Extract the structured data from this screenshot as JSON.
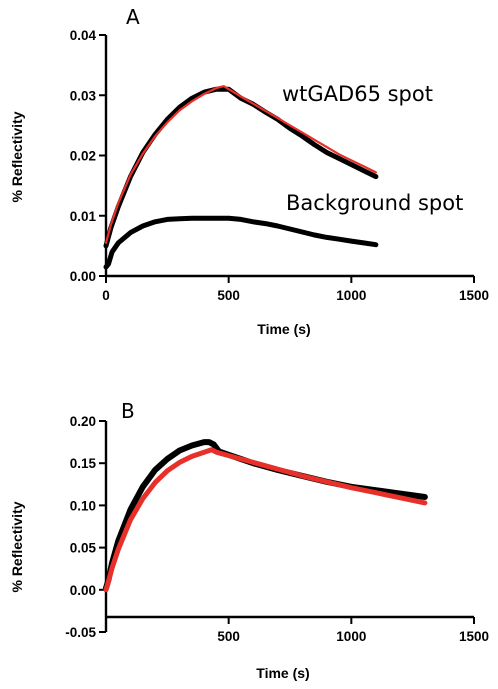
{
  "chart_data": [
    {
      "type": "line",
      "panel_label": "A",
      "xlabel": "Time (s)",
      "ylabel": "% Reflectivity",
      "xlim": [
        0,
        1500
      ],
      "ylim": [
        0,
        0.04
      ],
      "xticks": [
        0,
        500,
        1000,
        1500
      ],
      "xtick_labels": [
        "0",
        "500",
        "1000",
        "1500"
      ],
      "yticks": [
        0,
        0.01,
        0.02,
        0.03,
        0.04
      ],
      "ytick_labels": [
        "0.00",
        "0.01",
        "0.02",
        "0.03",
        "0.04"
      ],
      "grid": false,
      "annotations": [
        "wtGAD65 spot",
        "Background spot"
      ],
      "series": [
        {
          "role": "data",
          "color": "#000000",
          "x": [
            0,
            20,
            50,
            100,
            150,
            200,
            250,
            300,
            350,
            400,
            450,
            500,
            550,
            600,
            650,
            700,
            750,
            800,
            850,
            900,
            950,
            1000,
            1050,
            1100
          ],
          "y": [
            0.005,
            0.008,
            0.0115,
            0.0165,
            0.0205,
            0.0235,
            0.026,
            0.028,
            0.0295,
            0.0305,
            0.031,
            0.031,
            0.0295,
            0.0285,
            0.0272,
            0.026,
            0.0245,
            0.0232,
            0.0218,
            0.0205,
            0.0195,
            0.0185,
            0.0175,
            0.0165
          ]
        },
        {
          "role": "fit",
          "color": "#e8302b",
          "x": [
            0,
            20,
            50,
            100,
            150,
            200,
            250,
            300,
            350,
            400,
            450,
            480,
            550,
            600,
            650,
            700,
            750,
            800,
            850,
            900,
            950,
            1000,
            1050,
            1100
          ],
          "y": [
            0.0055,
            0.0085,
            0.0121,
            0.0168,
            0.0203,
            0.0232,
            0.0255,
            0.0275,
            0.029,
            0.0302,
            0.0312,
            0.0315,
            0.0298,
            0.0286,
            0.0274,
            0.0262,
            0.025,
            0.0238,
            0.0226,
            0.0214,
            0.0202,
            0.0192,
            0.0182,
            0.0172
          ]
        },
        {
          "role": "data",
          "color": "#000000",
          "x": [
            0,
            10,
            25,
            50,
            100,
            150,
            200,
            250,
            300,
            350,
            400,
            450,
            500,
            550,
            600,
            650,
            700,
            750,
            800,
            850,
            900,
            950,
            1000,
            1050,
            1100
          ],
          "y": [
            0.0015,
            0.002,
            0.004,
            0.0055,
            0.0072,
            0.0083,
            0.009,
            0.0094,
            0.0095,
            0.0096,
            0.0096,
            0.0096,
            0.0096,
            0.0094,
            0.009,
            0.0087,
            0.0083,
            0.0078,
            0.0073,
            0.0068,
            0.0064,
            0.0061,
            0.0058,
            0.0055,
            0.0052
          ]
        }
      ]
    },
    {
      "type": "line",
      "panel_label": "B",
      "xlabel": "Time (s)",
      "ylabel": "% Reflectivity",
      "xlim": [
        0,
        1500
      ],
      "ylim": [
        -0.05,
        0.2
      ],
      "xticks": [
        500,
        1000,
        1500
      ],
      "xtick_labels": [
        "500",
        "1000",
        "1500"
      ],
      "yticks": [
        -0.05,
        0,
        0.05,
        0.1,
        0.15,
        0.2
      ],
      "ytick_labels": [
        "-0.05",
        "0.00",
        "0.05",
        "0.10",
        "0.15",
        "0.20"
      ],
      "grid": false,
      "series": [
        {
          "role": "data",
          "color": "#000000",
          "x": [
            0,
            10,
            25,
            50,
            100,
            150,
            200,
            250,
            300,
            350,
            400,
            420,
            440,
            460,
            500,
            550,
            600,
            700,
            800,
            900,
            1000,
            1100,
            1200,
            1300
          ],
          "y": [
            0.002,
            0.012,
            0.032,
            0.058,
            0.095,
            0.122,
            0.142,
            0.155,
            0.165,
            0.171,
            0.175,
            0.175,
            0.172,
            0.164,
            0.16,
            0.155,
            0.15,
            0.142,
            0.135,
            0.128,
            0.122,
            0.118,
            0.114,
            0.11
          ]
        },
        {
          "role": "fit",
          "color": "#e8302b",
          "x": [
            0,
            10,
            25,
            50,
            100,
            150,
            200,
            250,
            300,
            350,
            400,
            430,
            450,
            500,
            550,
            600,
            700,
            800,
            900,
            1000,
            1100,
            1200,
            1300
          ],
          "y": [
            0.0,
            0.01,
            0.026,
            0.048,
            0.083,
            0.108,
            0.127,
            0.141,
            0.151,
            0.158,
            0.163,
            0.166,
            0.163,
            0.159,
            0.155,
            0.151,
            0.143,
            0.135,
            0.128,
            0.121,
            0.115,
            0.109,
            0.103
          ]
        }
      ]
    }
  ]
}
